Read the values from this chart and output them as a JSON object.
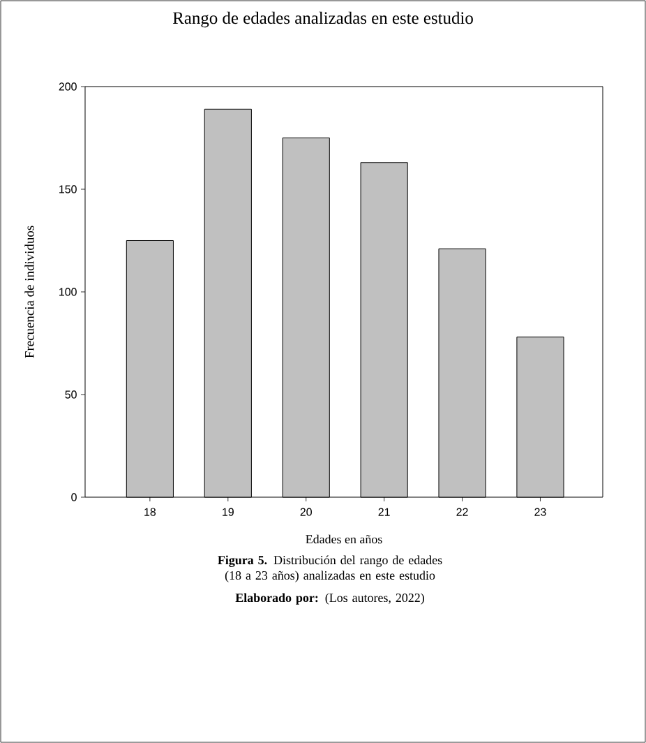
{
  "chart_data": {
    "type": "bar",
    "title": "Rango de edades analizadas en este estudio",
    "xlabel": "Edades en años",
    "ylabel": "Frecuencia de individuos",
    "categories": [
      "18",
      "19",
      "20",
      "21",
      "22",
      "23"
    ],
    "values": [
      125,
      189,
      175,
      163,
      121,
      78
    ],
    "color": "#c0c0c0",
    "ylim": [
      0,
      200
    ],
    "yticks": [
      0,
      50,
      100,
      150,
      200
    ],
    "annotations": [
      "**Figura 5.** Distribución del rango de edades  (18 a 23 años) analizadas en este estudio",
      "**Elaborado por:** (Los autores, 2022)"
    ]
  }
}
